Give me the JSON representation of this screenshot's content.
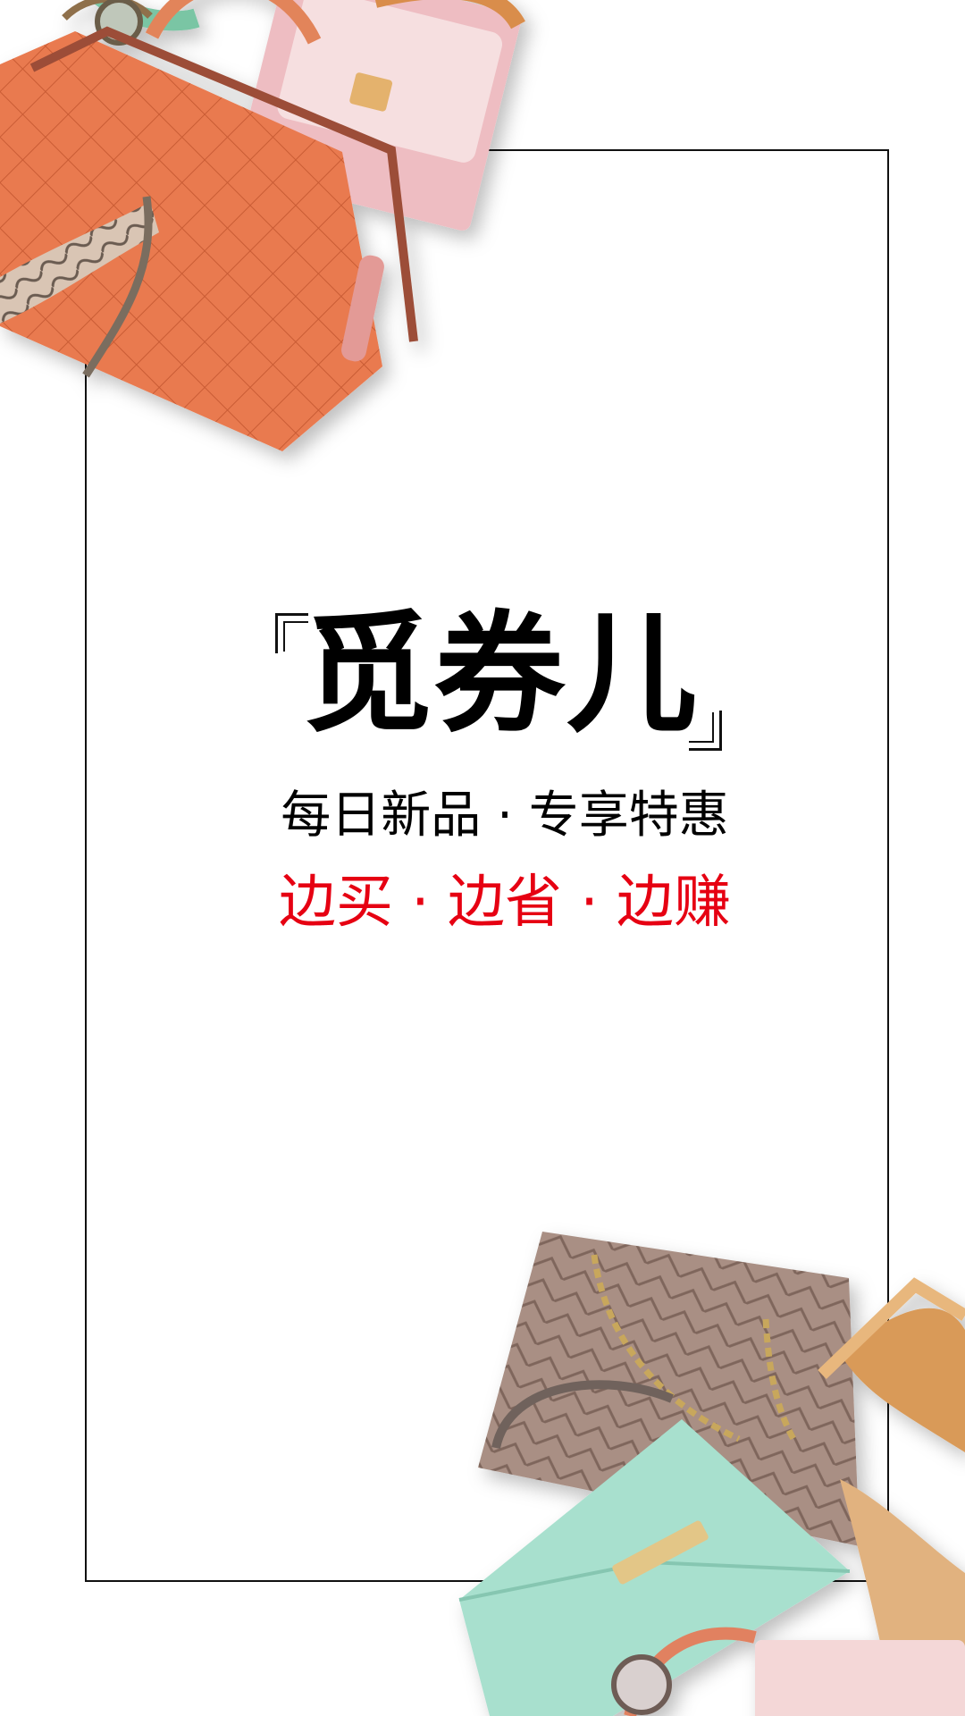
{
  "splash": {
    "brand_name": "觅券儿",
    "tagline": "每日新品 · 专享特惠",
    "slogan": "边买 · 边省 · 边赚"
  },
  "colors": {
    "background": "#ffffff",
    "frame": "#111111",
    "slogan": "#e60012",
    "text": "#000000"
  },
  "icons": {
    "top_left": "fashion-products-image",
    "bottom_right": "fashion-products-image"
  }
}
